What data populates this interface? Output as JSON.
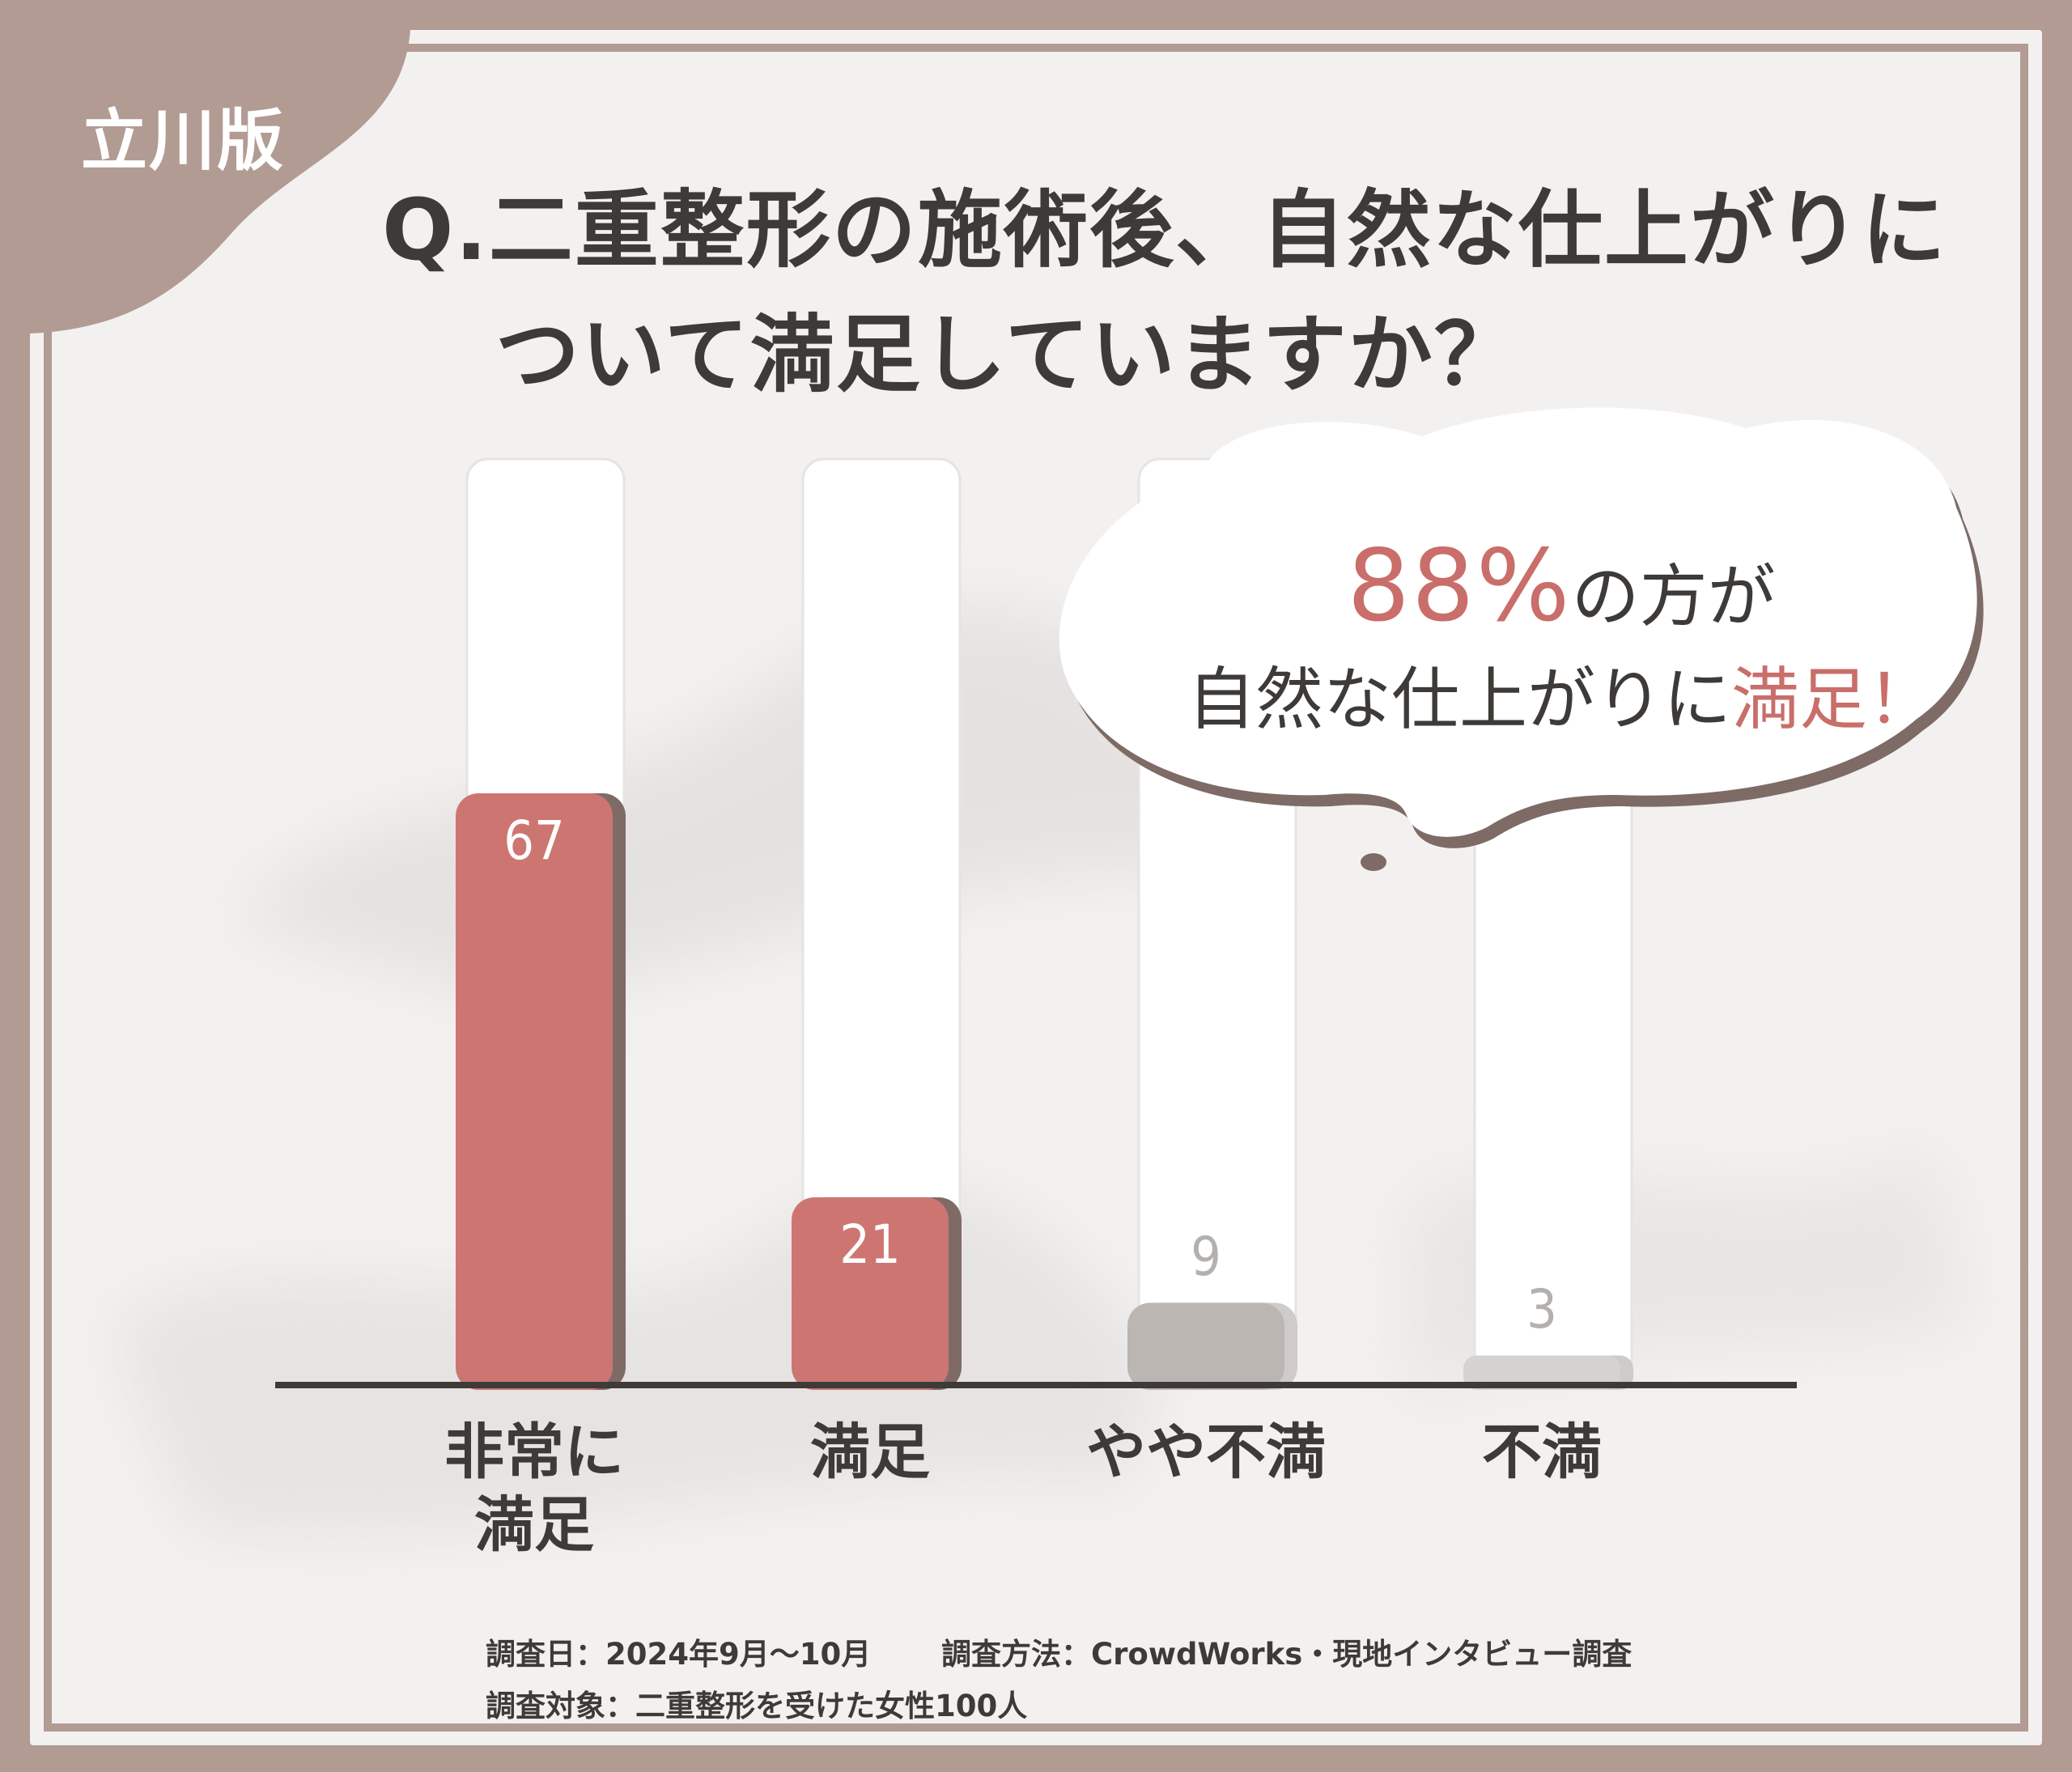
{
  "badge": {
    "edition": "立川版"
  },
  "title": {
    "line1": "Q.二重整形の施術後、自然な仕上がりに",
    "line2": "ついて満足していますか？"
  },
  "callout": {
    "percent": "88%",
    "line1_suffix": "の方が",
    "line2_prefix": "自然な仕上がりに",
    "line2_accent": "満足！"
  },
  "chart_data": {
    "type": "bar",
    "title": "Q.二重整形の施術後、自然な仕上がりについて満足していますか？",
    "xlabel": "",
    "ylabel": "",
    "categories": [
      "非常に満足",
      "満足",
      "やや不満",
      "不満"
    ],
    "category_display": [
      [
        "非常に",
        "満足"
      ],
      [
        "満足"
      ],
      [
        "やや不満"
      ],
      [
        "不満"
      ]
    ],
    "values": [
      67,
      21,
      9,
      3
    ],
    "value_labels": [
      "67",
      "21",
      "9",
      "3"
    ],
    "ylim": [
      0,
      100
    ],
    "grid": false,
    "legend": "none",
    "bar_colors": [
      "#cd7671",
      "#cd7671",
      "#bcb6b3",
      "#d5d2d0"
    ],
    "value_label_colors": [
      "#ffffff",
      "#ffffff",
      "#b4b0ae",
      "#b4b0ae"
    ]
  },
  "notes": {
    "date": "調査日：2024年9月〜10月",
    "method": "調査方法：CrowdWorks・現地インタビュー調査",
    "target": "調査対象：二重整形を受けた女性100人"
  },
  "colors": {
    "frame": "#b29b93",
    "accent": "#c96e6a",
    "text": "#3d3a38",
    "bar_shadow": "#7e6b66"
  }
}
